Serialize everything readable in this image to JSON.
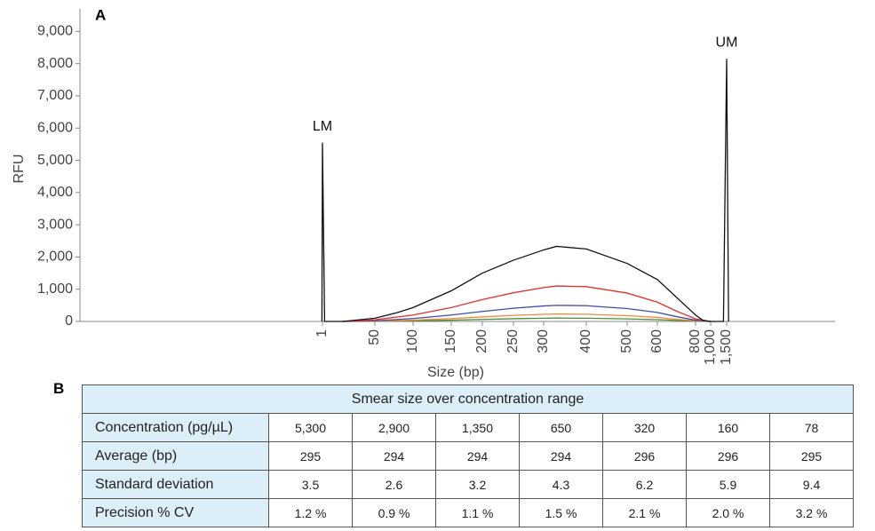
{
  "chart_data": {
    "type": "line",
    "panel_label": "A",
    "ylabel": "RFU",
    "xlabel": "Size (bp)",
    "annotations": [
      {
        "text": "LM",
        "x": 1,
        "y": 5550
      },
      {
        "text": "UM",
        "x": 1500,
        "y": 8150
      }
    ],
    "ylim": [
      0,
      9700
    ],
    "yticks": [
      0,
      {
        "value": 1000,
        "label": "1,000"
      },
      {
        "value": 2000,
        "label": "2,000"
      },
      {
        "value": 3000,
        "label": "3,000"
      },
      {
        "value": 4000,
        "label": "4,000"
      },
      {
        "value": 5000,
        "label": "5,000"
      },
      {
        "value": 6000,
        "label": "6,000"
      },
      {
        "value": 7000,
        "label": "7,000"
      },
      {
        "value": 8000,
        "label": "8,000"
      },
      {
        "value": 9000,
        "label": "9,000"
      }
    ],
    "xticks": [
      1,
      50,
      100,
      150,
      200,
      250,
      300,
      400,
      500,
      600,
      800,
      {
        "value": 1000,
        "label": "1,000"
      },
      {
        "value": 1500,
        "label": "1,500"
      }
    ],
    "series": [
      {
        "color": "#4a8a3a",
        "x": [
          20,
          50,
          100,
          150,
          200,
          250,
          300,
          330,
          400,
          500,
          600,
          700,
          800,
          1000
        ],
        "values": [
          0,
          5,
          18,
          40,
          62,
          85,
          100,
          105,
          100,
          80,
          55,
          30,
          8,
          0
        ]
      },
      {
        "color": "#f08a3c",
        "x": [
          20,
          50,
          100,
          150,
          200,
          250,
          300,
          330,
          400,
          500,
          600,
          700,
          800,
          1000
        ],
        "values": [
          0,
          10,
          40,
          90,
          140,
          190,
          220,
          230,
          225,
          180,
          125,
          65,
          20,
          0
        ]
      },
      {
        "color": "#3a4fa8",
        "x": [
          20,
          50,
          100,
          150,
          200,
          250,
          300,
          330,
          400,
          500,
          600,
          700,
          800,
          1000
        ],
        "values": [
          0,
          20,
          90,
          200,
          310,
          410,
          480,
          500,
          490,
          400,
          280,
          150,
          40,
          0
        ]
      },
      {
        "color": "#e0302c",
        "x": [
          20,
          50,
          100,
          150,
          200,
          250,
          300,
          330,
          400,
          500,
          600,
          700,
          800,
          1000
        ],
        "values": [
          0,
          50,
          200,
          430,
          680,
          890,
          1050,
          1100,
          1080,
          880,
          600,
          320,
          80,
          0
        ]
      },
      {
        "color": "#111111",
        "x": [
          0.5,
          1,
          3,
          20,
          50,
          80,
          100,
          150,
          200,
          250,
          300,
          330,
          400,
          500,
          600,
          700,
          800,
          900,
          1000,
          1400,
          1500,
          1560
        ],
        "values": [
          0,
          5550,
          0,
          0,
          100,
          280,
          430,
          950,
          1500,
          1900,
          2220,
          2330,
          2250,
          1800,
          1300,
          750,
          200,
          30,
          0,
          0,
          8150,
          0
        ]
      }
    ]
  },
  "table": {
    "panel_label": "B",
    "title": "Smear size over concentration range",
    "rows": [
      [
        "Concentration (pg/µL)",
        "5,300",
        "2,900",
        "1,350",
        "650",
        "320",
        "160",
        "78"
      ],
      [
        "Average (bp)",
        "295",
        "294",
        "294",
        "294",
        "296",
        "296",
        "295"
      ],
      [
        "Standard deviation",
        "3.5",
        "2.6",
        "3.2",
        "4.3",
        "6.2",
        "5.9",
        "9.4"
      ],
      [
        "Precision % CV",
        "1.2 %",
        "0.9 %",
        "1.1 %",
        "1.5 %",
        "2.1 %",
        "2.0 %",
        "3.2 %"
      ]
    ]
  }
}
